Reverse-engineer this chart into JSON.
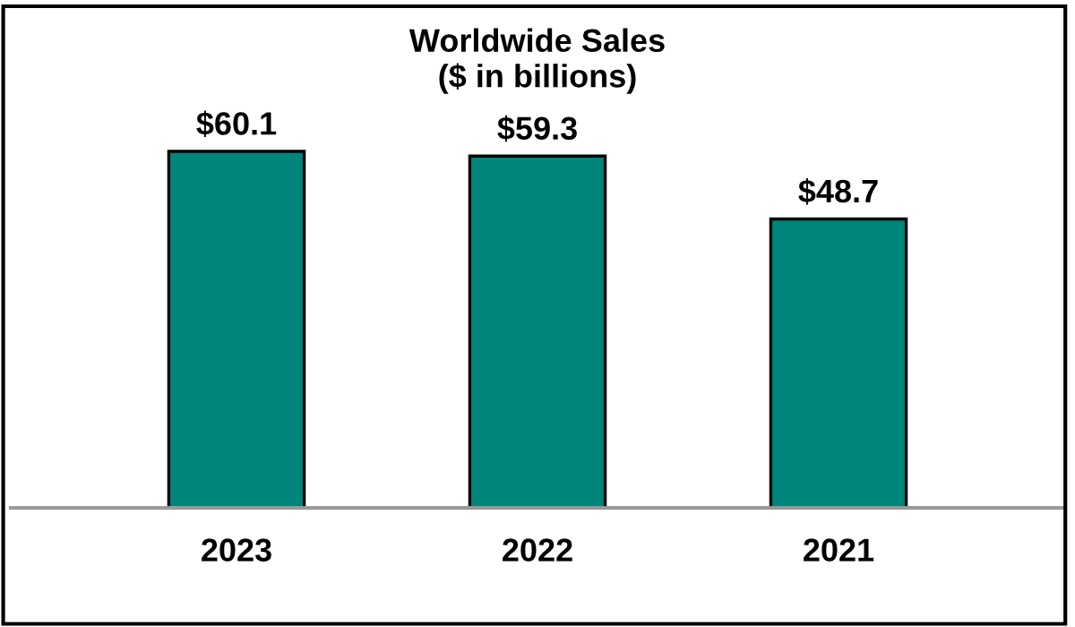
{
  "chart_data": {
    "type": "bar",
    "title": "Worldwide Sales\n($ in billions)",
    "categories": [
      "2023",
      "2022",
      "2021"
    ],
    "values": [
      60.1,
      59.3,
      48.7
    ],
    "value_labels": [
      "$60.1",
      "$59.3",
      "$48.7"
    ],
    "color": "#00857a",
    "tick_labels": "x",
    "grid": false,
    "legend": false
  }
}
